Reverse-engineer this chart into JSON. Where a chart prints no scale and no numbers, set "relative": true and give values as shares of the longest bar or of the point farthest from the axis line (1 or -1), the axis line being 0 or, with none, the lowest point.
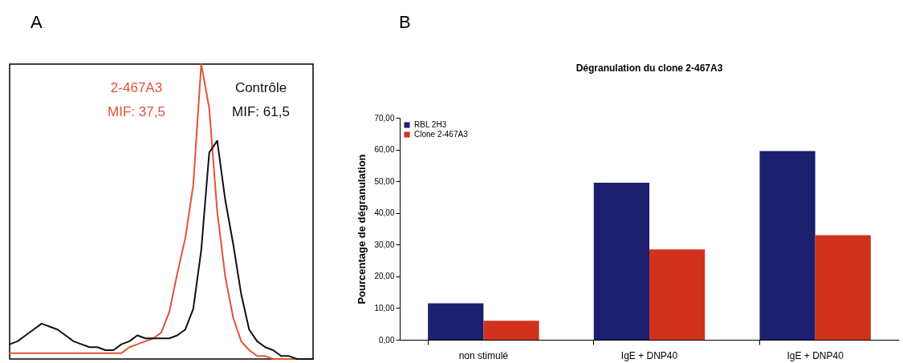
{
  "chart_data": [
    {
      "type": "line",
      "relative": true,
      "legend": false,
      "annotations": [
        "A",
        "MIF: 37,5",
        "MIF: 61,5"
      ],
      "categories": [
        null,
        null,
        null,
        null,
        null,
        null,
        null,
        null,
        null,
        null,
        null,
        null,
        null,
        null,
        null,
        null,
        null,
        null,
        null,
        null,
        null,
        null,
        null,
        null,
        null,
        null,
        null,
        null,
        null,
        null,
        null,
        null,
        null,
        null,
        null,
        null,
        null,
        null,
        null
      ],
      "series": [
        {
          "name": "2-467A3",
          "color": "#e0533a",
          "values": [
            0.02,
            0.02,
            0.02,
            0.02,
            0.02,
            0.02,
            0.02,
            0.02,
            0.02,
            0.02,
            0.02,
            0.02,
            0.02,
            0.02,
            0.02,
            0.04,
            0.05,
            0.06,
            0.07,
            0.09,
            0.16,
            0.29,
            0.41,
            0.59,
            1.0,
            0.85,
            0.5,
            0.28,
            0.14,
            0.06,
            0.03,
            0.01,
            0.01,
            0,
            0,
            0,
            0,
            0,
            0
          ]
        },
        {
          "name": "Contrôle",
          "color": "#111111",
          "values": [
            0.05,
            0.06,
            0.08,
            0.1,
            0.12,
            0.11,
            0.1,
            0.08,
            0.06,
            0.05,
            0.04,
            0.04,
            0.03,
            0.03,
            0.05,
            0.06,
            0.08,
            0.07,
            0.07,
            0.07,
            0.07,
            0.08,
            0.1,
            0.17,
            0.37,
            0.7,
            0.74,
            0.54,
            0.39,
            0.22,
            0.1,
            0.06,
            0.04,
            0.03,
            0.01,
            0.01,
            0,
            0,
            0
          ]
        }
      ]
    },
    {
      "type": "bar",
      "title": "Dégranulation du clone 2-467A3",
      "ylabel": "Pourcentage de dégranulation",
      "legend": "top left",
      "annotations": [
        "B"
      ],
      "categories": [
        "non stimulé",
        "IgE + DNP40",
        "IgE + DNP40"
      ],
      "ylim": [
        0,
        70
      ],
      "yticks": [
        {
          "value": 0,
          "label": "0,00"
        },
        {
          "value": 10,
          "label": "10,00"
        },
        {
          "value": 20,
          "label": "20,00"
        },
        {
          "value": 30,
          "label": "30,00"
        },
        {
          "value": 40,
          "label": "40,00"
        },
        {
          "value": 50,
          "label": "50,00"
        },
        {
          "value": 60,
          "label": "60,00"
        },
        {
          "value": 70,
          "label": "70,00"
        }
      ],
      "series": [
        {
          "name": "RBL 2H3",
          "color": "#1b1f6e",
          "values": [
            11.5,
            49.5,
            59.5
          ]
        },
        {
          "name": "Clone 2-467A3",
          "color": "#d0321e",
          "values": [
            6,
            28.5,
            33
          ]
        }
      ]
    }
  ]
}
